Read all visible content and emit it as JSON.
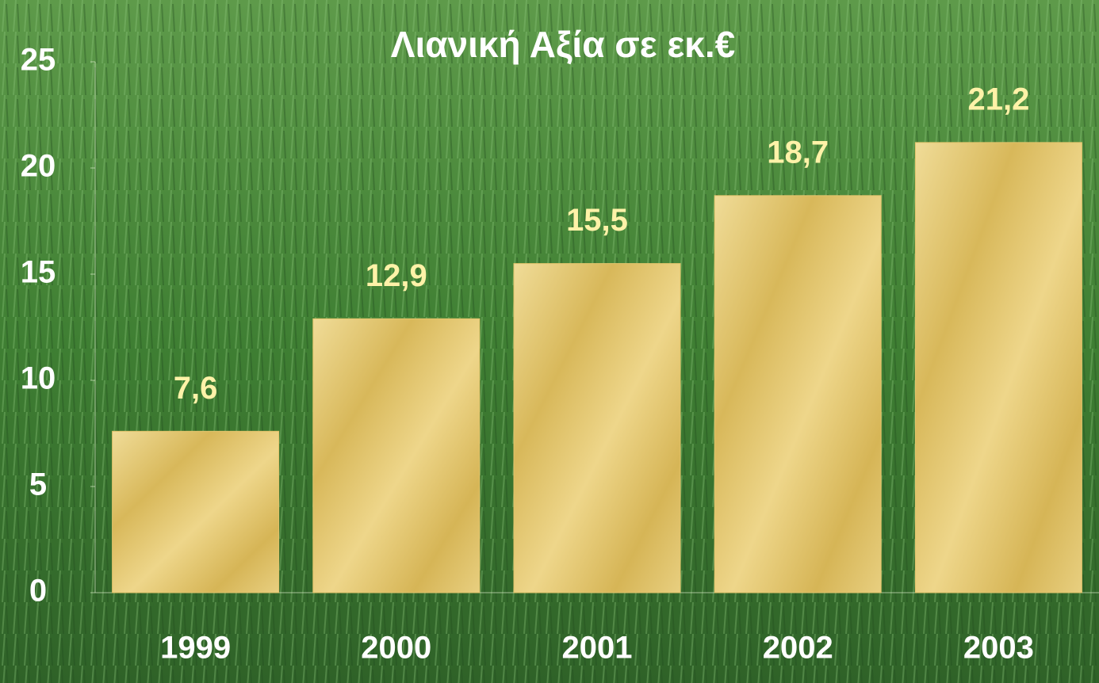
{
  "chart_data": {
    "type": "bar",
    "title": "Λιανική Αξία σε εκ.€",
    "categories": [
      "1999",
      "2000",
      "2001",
      "2002",
      "2003"
    ],
    "values": [
      7.6,
      12.9,
      15.5,
      18.7,
      21.2
    ],
    "value_labels": [
      "7,6",
      "12,9",
      "15,5",
      "18,7",
      "21,2"
    ],
    "color": "#e3c46c",
    "ylim": [
      0,
      25
    ],
    "yticks": [
      0,
      5,
      10,
      15,
      20,
      25
    ],
    "grid": false
  }
}
